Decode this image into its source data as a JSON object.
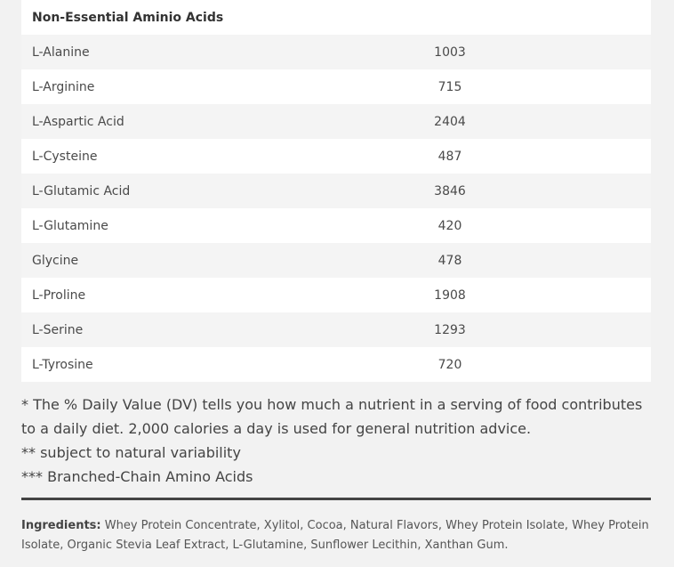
{
  "table": {
    "header": "Non-Essential Aminio Acids",
    "rows": [
      {
        "name": "L-Alanine",
        "value": "1003"
      },
      {
        "name": "L-Arginine",
        "value": "715"
      },
      {
        "name": "L-Aspartic Acid",
        "value": "2404"
      },
      {
        "name": "L-Cysteine",
        "value": "487"
      },
      {
        "name": "L-Glutamic Acid",
        "value": "3846"
      },
      {
        "name": "L-Glutamine",
        "value": "420"
      },
      {
        "name": "Glycine",
        "value": "478"
      },
      {
        "name": "L-Proline",
        "value": "1908"
      },
      {
        "name": "L-Serine",
        "value": "1293"
      },
      {
        "name": "L-Tyrosine",
        "value": "720"
      }
    ]
  },
  "footnotes": {
    "dv": "* The % Daily Value (DV) tells you how much a nutrient in a serving of food contributes to a daily diet. 2,000 calories a day is used for general nutrition advice.",
    "variability": "** subject to natural variability",
    "bcaa": "*** Branched-Chain Amino Acids"
  },
  "ingredients": {
    "label": "Ingredients:",
    "text": " Whey Protein Concentrate, Xylitol, Cocoa, Natural Flavors, Whey Protein Isolate, Whey Protein Isolate, Organic Stevia Leaf Extract, L-Glutamine, Sunflower Lecithin, Xanthan Gum."
  }
}
